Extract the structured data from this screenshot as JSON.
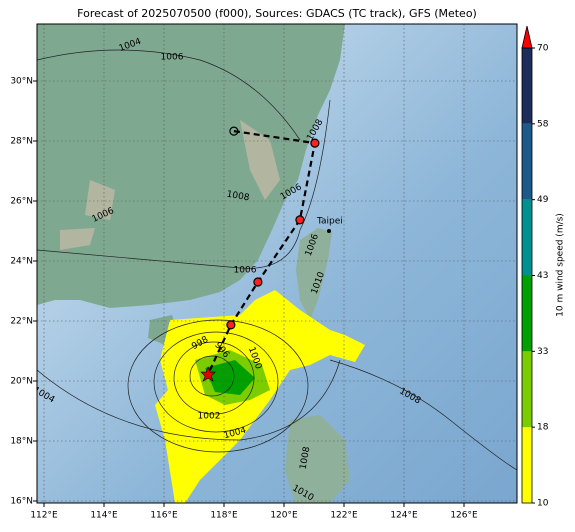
{
  "map": {
    "title": "Forecast of 2025070500 (f000), Sources: GDACS (TC track), GFS (Meteo)",
    "lon_ticks": [
      {
        "value": 112,
        "label": "112°E"
      },
      {
        "value": 114,
        "label": "114°E"
      },
      {
        "value": 116,
        "label": "116°E"
      },
      {
        "value": 118,
        "label": "118°E"
      },
      {
        "value": 120,
        "label": "120°E"
      },
      {
        "value": 122,
        "label": "122°E"
      },
      {
        "value": 124,
        "label": "124°E"
      },
      {
        "value": 126,
        "label": "126°E"
      }
    ],
    "lat_ticks": [
      {
        "value": 16,
        "label": "16°N"
      },
      {
        "value": 18,
        "label": "18°N"
      },
      {
        "value": 20,
        "label": "20°N"
      },
      {
        "value": 22,
        "label": "22°N"
      },
      {
        "value": 24,
        "label": "24°N"
      },
      {
        "value": 26,
        "label": "26°N"
      },
      {
        "value": 28,
        "label": "28°N"
      },
      {
        "value": 30,
        "label": "30°N"
      }
    ],
    "colorbar": {
      "label": "10 m wind speed (m/s)",
      "ticks": [
        10,
        18,
        33,
        43,
        49,
        58,
        70
      ],
      "colors": [
        "#ffff00",
        "#7ccd00",
        "#00a000",
        "#009090",
        "#1d5a8a",
        "#1c2d5c"
      ],
      "extend_color": "#ff0000"
    },
    "city": {
      "name": "Taipei",
      "lon": 121.5,
      "lat": 25.0
    },
    "track": {
      "lon": [
        118.33,
        121.03,
        120.53,
        119.13,
        118.23,
        117.47
      ],
      "lat": [
        28.33,
        27.93,
        25.37,
        23.3,
        21.87,
        20.23
      ]
    },
    "isobar_labels": [
      1004,
      1006,
      1006,
      1008,
      1006,
      1008,
      1006,
      1006,
      1010,
      998,
      996,
      1000,
      1002,
      1004,
      1004,
      1008,
      1008,
      1010
    ]
  }
}
